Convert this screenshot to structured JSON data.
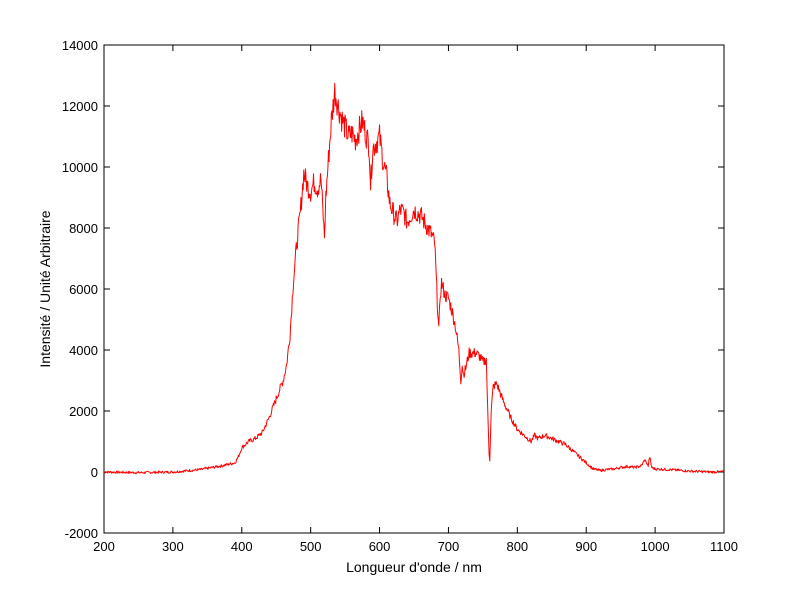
{
  "chart_data": {
    "type": "line",
    "title": "",
    "xlabel": "Longueur d'onde / nm",
    "ylabel": "Intensité / Unité Arbitraire",
    "xlim": [
      200,
      1100
    ],
    "ylim": [
      -2000,
      14000
    ],
    "xticks": [
      200,
      300,
      400,
      500,
      600,
      700,
      800,
      900,
      1000,
      1100
    ],
    "yticks": [
      -2000,
      0,
      2000,
      4000,
      6000,
      8000,
      10000,
      12000,
      14000
    ],
    "grid": false,
    "legend": "none",
    "series": [
      {
        "color": "#ff0000",
        "x": [
          200,
          250,
          300,
          340,
          370,
          390,
          395,
          400,
          410,
          420,
          430,
          440,
          450,
          460,
          465,
          470,
          475,
          480,
          485,
          490,
          495,
          500,
          505,
          510,
          515,
          520,
          522,
          525,
          530,
          535,
          540,
          545,
          550,
          555,
          560,
          565,
          570,
          575,
          580,
          585,
          587,
          590,
          595,
          600,
          605,
          610,
          615,
          620,
          625,
          630,
          635,
          640,
          645,
          650,
          655,
          660,
          665,
          670,
          675,
          680,
          683,
          686,
          688,
          690,
          695,
          700,
          705,
          710,
          715,
          718,
          720,
          722,
          725,
          730,
          735,
          740,
          745,
          750,
          755,
          757,
          759,
          760,
          762,
          765,
          770,
          775,
          780,
          790,
          800,
          810,
          820,
          825,
          830,
          840,
          850,
          860,
          870,
          880,
          890,
          900,
          910,
          920,
          930,
          940,
          950,
          960,
          970,
          980,
          985,
          990,
          992,
          995,
          1000,
          1020,
          1050,
          1080,
          1100
        ],
        "y": [
          0,
          -20,
          0,
          80,
          200,
          300,
          500,
          800,
          1000,
          1100,
          1300,
          1800,
          2400,
          3000,
          3500,
          4500,
          6300,
          7500,
          8500,
          9800,
          9400,
          9200,
          9500,
          9300,
          9600,
          7700,
          9000,
          10000,
          11500,
          12500,
          12000,
          11600,
          11300,
          11000,
          11100,
          10900,
          11200,
          11500,
          11100,
          10700,
          9400,
          10600,
          10800,
          11000,
          10200,
          9700,
          8800,
          8500,
          8200,
          8600,
          8500,
          8200,
          8400,
          8600,
          8500,
          8400,
          8200,
          8000,
          7800,
          7500,
          6000,
          4600,
          5800,
          6200,
          5800,
          5700,
          5300,
          4800,
          4000,
          3000,
          3500,
          3200,
          3400,
          3900,
          3900,
          3900,
          3800,
          3600,
          3700,
          2000,
          600,
          400,
          2000,
          2800,
          2900,
          2600,
          2300,
          1800,
          1400,
          1200,
          1000,
          1200,
          1100,
          1200,
          1100,
          1000,
          900,
          700,
          500,
          300,
          100,
          50,
          80,
          100,
          150,
          180,
          150,
          200,
          400,
          200,
          500,
          150,
          100,
          80,
          30,
          0,
          10
        ]
      }
    ]
  }
}
